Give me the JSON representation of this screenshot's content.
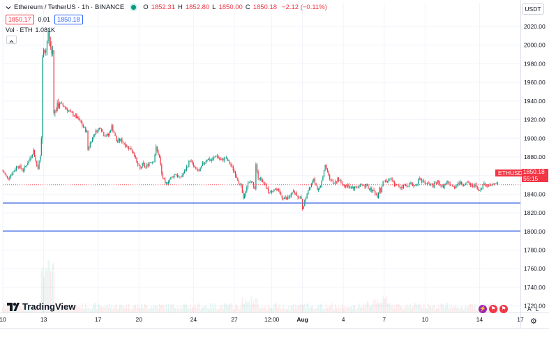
{
  "header": {
    "title": "Ethereum / TetherUS · 1h · BINANCE",
    "ohlc": [
      {
        "k": "O",
        "v": "1852.31"
      },
      {
        "k": "H",
        "v": "1852.80"
      },
      {
        "k": "L",
        "v": "1850.00"
      },
      {
        "k": "C",
        "v": "1850.18"
      }
    ],
    "change": "−2.12 (−0.11%)",
    "sell_price": "1850.17",
    "spread": "0.01",
    "buy_price": "1850.18",
    "volume_label": "Vol · ETH",
    "volume_value": "1.081K",
    "currency": "USDT"
  },
  "price_tag": {
    "symbol": "ETHUSDT",
    "price": "1850.18",
    "countdown": "55:15"
  },
  "brand": {
    "name": "TradingView"
  },
  "scale_buttons": [
    "A",
    "L"
  ],
  "icons": [
    "chevron-down-icon",
    "live-dot-icon",
    "tradingview-logo-icon",
    "lightning-icon",
    "flag-icon",
    "settings-icon"
  ],
  "colors": {
    "up": "#089981",
    "down": "#f23645",
    "hline": "#4a72e8",
    "grid": "#f0f3fa"
  },
  "chart_data": {
    "type": "candlestick",
    "y_axis": {
      "ticks": [
        1720,
        1740,
        1760,
        1780,
        1800,
        1820,
        1840,
        1860,
        1880,
        1900,
        1920,
        1940,
        1960,
        1980,
        2000,
        2020
      ],
      "tick_labels": [
        "1720.00",
        "1740.00",
        "1760.00",
        "1780.00",
        "1800.00",
        "1820.00",
        "1840.00",
        "1860.00",
        "1880.00",
        "1900.00",
        "1920.00",
        "1940.00",
        "1960.00",
        "1980.00",
        "2000.00",
        "2020.00"
      ],
      "range": [
        1713,
        2032
      ]
    },
    "x_axis": {
      "tick_labels": [
        "10",
        "13",
        "17",
        "20",
        "24",
        "27",
        "12:00",
        "Aug",
        "4",
        "7",
        "10",
        "14",
        "17"
      ],
      "tick_hours": [
        0,
        72,
        168,
        240,
        336,
        408,
        474,
        528,
        600,
        672,
        744,
        840,
        912
      ],
      "range_hours": [
        0,
        912
      ]
    },
    "horizontal_lines": [
      1830.5,
      1800.5
    ],
    "last_price": 1850.18,
    "price_path": [
      [
        0,
        1865
      ],
      [
        8,
        1857
      ],
      [
        16,
        1862
      ],
      [
        26,
        1871
      ],
      [
        36,
        1866
      ],
      [
        46,
        1876
      ],
      [
        54,
        1887
      ],
      [
        60,
        1870
      ],
      [
        64,
        1873
      ],
      [
        66,
        1880
      ],
      [
        68,
        1900
      ],
      [
        69,
        1972
      ],
      [
        70,
        1985
      ],
      [
        72,
        1997
      ],
      [
        73,
        2002
      ],
      [
        75,
        1990
      ],
      [
        78,
        2005
      ],
      [
        80,
        2010
      ],
      [
        84,
        1998
      ],
      [
        88,
        1992
      ],
      [
        90,
        1925
      ],
      [
        94,
        1932
      ],
      [
        100,
        1938
      ],
      [
        110,
        1933
      ],
      [
        120,
        1927
      ],
      [
        128,
        1924
      ],
      [
        136,
        1918
      ],
      [
        142,
        1912
      ],
      [
        148,
        1907
      ],
      [
        150,
        1888
      ],
      [
        154,
        1895
      ],
      [
        162,
        1906
      ],
      [
        172,
        1912
      ],
      [
        178,
        1904
      ],
      [
        186,
        1903
      ],
      [
        192,
        1913
      ],
      [
        196,
        1906
      ],
      [
        200,
        1897
      ],
      [
        208,
        1898
      ],
      [
        216,
        1893
      ],
      [
        226,
        1888
      ],
      [
        232,
        1883
      ],
      [
        236,
        1873
      ],
      [
        242,
        1867
      ],
      [
        246,
        1872
      ],
      [
        252,
        1869
      ],
      [
        258,
        1874
      ],
      [
        266,
        1876
      ],
      [
        270,
        1890
      ],
      [
        276,
        1879
      ],
      [
        280,
        1862
      ],
      [
        286,
        1850
      ],
      [
        294,
        1856
      ],
      [
        304,
        1862
      ],
      [
        312,
        1857
      ],
      [
        322,
        1866
      ],
      [
        330,
        1877
      ],
      [
        338,
        1868
      ],
      [
        346,
        1864
      ],
      [
        352,
        1872
      ],
      [
        360,
        1878
      ],
      [
        368,
        1876
      ],
      [
        376,
        1882
      ],
      [
        384,
        1876
      ],
      [
        392,
        1879
      ],
      [
        400,
        1873
      ],
      [
        408,
        1864
      ],
      [
        414,
        1856
      ],
      [
        420,
        1847
      ],
      [
        424,
        1836
      ],
      [
        428,
        1845
      ],
      [
        432,
        1851
      ],
      [
        438,
        1854
      ],
      [
        444,
        1847
      ],
      [
        446,
        1873
      ],
      [
        450,
        1859
      ],
      [
        458,
        1852
      ],
      [
        464,
        1847
      ],
      [
        470,
        1841
      ],
      [
        478,
        1846
      ],
      [
        486,
        1843
      ],
      [
        492,
        1837
      ],
      [
        500,
        1835
      ],
      [
        506,
        1838
      ],
      [
        512,
        1842
      ],
      [
        518,
        1840
      ],
      [
        522,
        1836
      ],
      [
        526,
        1834
      ],
      [
        528,
        1825
      ],
      [
        532,
        1832
      ],
      [
        538,
        1845
      ],
      [
        544,
        1852
      ],
      [
        548,
        1858
      ],
      [
        552,
        1849
      ],
      [
        556,
        1843
      ],
      [
        560,
        1848
      ],
      [
        564,
        1860
      ],
      [
        568,
        1870
      ],
      [
        572,
        1864
      ],
      [
        576,
        1858
      ],
      [
        582,
        1852
      ],
      [
        590,
        1856
      ],
      [
        600,
        1850
      ],
      [
        610,
        1848
      ],
      [
        620,
        1847
      ],
      [
        630,
        1850
      ],
      [
        640,
        1849
      ],
      [
        648,
        1845
      ],
      [
        654,
        1843
      ],
      [
        660,
        1838
      ],
      [
        664,
        1848
      ],
      [
        666,
        1843
      ],
      [
        670,
        1855
      ],
      [
        676,
        1853
      ],
      [
        682,
        1857
      ],
      [
        690,
        1850
      ],
      [
        700,
        1848
      ],
      [
        712,
        1850
      ],
      [
        720,
        1851
      ],
      [
        726,
        1849
      ],
      [
        734,
        1856
      ],
      [
        744,
        1852
      ],
      [
        750,
        1851
      ],
      [
        758,
        1849
      ],
      [
        766,
        1853
      ],
      [
        774,
        1848
      ],
      [
        784,
        1852
      ],
      [
        794,
        1847
      ],
      [
        802,
        1852
      ],
      [
        812,
        1851
      ],
      [
        820,
        1852
      ],
      [
        826,
        1849
      ],
      [
        832,
        1850
      ],
      [
        838,
        1843
      ],
      [
        842,
        1845
      ],
      [
        846,
        1852
      ],
      [
        852,
        1849
      ],
      [
        858,
        1851
      ],
      [
        862,
        1849
      ],
      [
        866,
        1853
      ],
      [
        872,
        1850
      ]
    ]
  }
}
